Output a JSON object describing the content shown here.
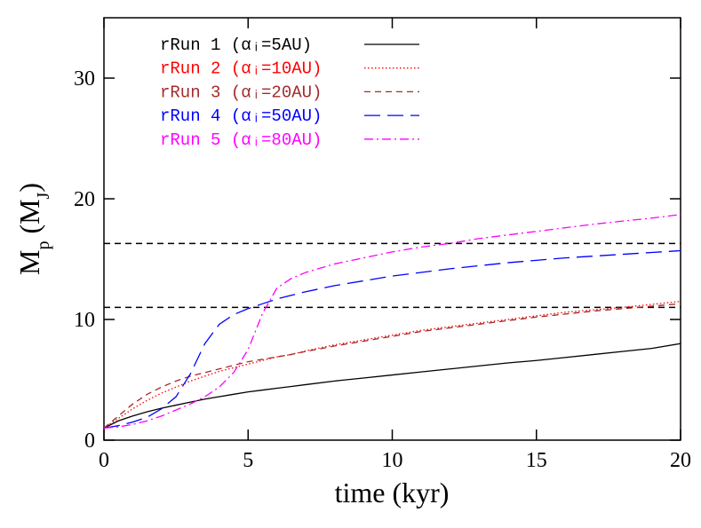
{
  "chart_data": {
    "type": "line",
    "xlabel": "time (kyr)",
    "ylabel": [
      {
        "text": "M"
      },
      {
        "text": "p",
        "sub": true
      },
      {
        "text": " (M"
      },
      {
        "text": "J",
        "sub": true
      },
      {
        "text": ")"
      }
    ],
    "xlim": [
      0,
      20
    ],
    "ylim": [
      0,
      35
    ],
    "xticks": [
      0,
      5,
      10,
      15,
      20
    ],
    "yticks": [
      0,
      10,
      20,
      30
    ],
    "hlines": [
      {
        "y": 16.3,
        "color": "#000000",
        "line_style": "dashed"
      },
      {
        "y": 11.0,
        "color": "#000000",
        "line_style": "dashed"
      }
    ],
    "x": [
      0,
      0.5,
      1,
      1.5,
      2,
      2.5,
      3,
      3.5,
      4,
      4.5,
      5,
      5.5,
      6,
      6.5,
      7,
      8,
      9,
      10,
      11,
      12,
      13,
      14,
      15,
      16,
      17,
      18,
      19,
      20
    ],
    "series": [
      {
        "name": "rRun 1 (αᵢ=5AU)",
        "color": "#000000",
        "line_style": "solid",
        "values": [
          1.0,
          1.6,
          2.0,
          2.35,
          2.65,
          2.9,
          3.15,
          3.4,
          3.6,
          3.8,
          4.0,
          4.15,
          4.3,
          4.45,
          4.6,
          4.9,
          5.15,
          5.4,
          5.65,
          5.9,
          6.15,
          6.4,
          6.6,
          6.85,
          7.1,
          7.35,
          7.6,
          8.0
        ]
      },
      {
        "name": "rRun 2 (αᵢ=10AU)",
        "color": "#ff0000",
        "line_style": "dotted",
        "values": [
          1.0,
          1.8,
          2.6,
          3.3,
          3.9,
          4.4,
          4.9,
          5.3,
          5.7,
          6.0,
          6.3,
          6.6,
          6.9,
          7.1,
          7.4,
          7.9,
          8.3,
          8.7,
          9.1,
          9.4,
          9.7,
          10.0,
          10.3,
          10.6,
          10.8,
          11.0,
          11.25,
          11.5
        ]
      },
      {
        "name": "rRun 3 (αᵢ=20AU)",
        "color": "#a52a2a",
        "line_style": "dashed",
        "values": [
          1.0,
          2.0,
          3.0,
          3.8,
          4.4,
          4.9,
          5.3,
          5.6,
          5.9,
          6.2,
          6.5,
          6.7,
          6.9,
          7.1,
          7.35,
          7.8,
          8.2,
          8.6,
          9.0,
          9.3,
          9.6,
          9.9,
          10.2,
          10.45,
          10.7,
          10.9,
          11.1,
          11.3
        ]
      },
      {
        "name": "rRun 4 (αᵢ=50AU)",
        "color": "#0000ff",
        "line_style": "long-dashed",
        "values": [
          1.0,
          1.2,
          1.5,
          1.9,
          2.6,
          3.6,
          5.5,
          8.0,
          9.6,
          10.4,
          10.9,
          11.3,
          11.7,
          12.0,
          12.3,
          12.8,
          13.2,
          13.6,
          13.9,
          14.2,
          14.45,
          14.7,
          14.9,
          15.1,
          15.25,
          15.4,
          15.55,
          15.7
        ]
      },
      {
        "name": "rRun 5 (αᵢ=80AU)",
        "color": "#ff00ff",
        "line_style": "dash-dot",
        "values": [
          1.0,
          1.1,
          1.3,
          1.6,
          2.0,
          2.5,
          3.0,
          3.6,
          4.4,
          5.6,
          7.5,
          10.5,
          12.6,
          13.4,
          13.9,
          14.6,
          15.1,
          15.6,
          16.0,
          16.3,
          16.7,
          17.0,
          17.3,
          17.6,
          17.9,
          18.15,
          18.4,
          18.7
        ]
      }
    ]
  }
}
